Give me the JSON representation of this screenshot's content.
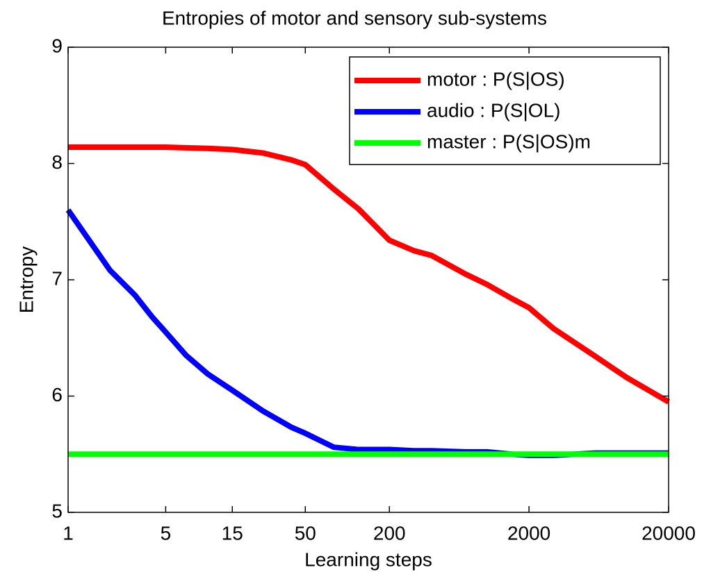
{
  "chart_data": {
    "type": "line",
    "title": "Entropies of motor and sensory sub-systems",
    "xlabel": "Learning steps",
    "ylabel": "Entropy",
    "xscale": "log",
    "x": [
      1,
      2,
      3,
      4,
      5,
      7,
      10,
      15,
      25,
      40,
      50,
      80,
      120,
      200,
      300,
      400,
      700,
      1000,
      1500,
      2000,
      3000,
      6000,
      10000,
      20000
    ],
    "series": [
      {
        "name": "motor : P(S|OS)",
        "color": "#ff0000",
        "values": [
          8.14,
          8.14,
          8.14,
          8.14,
          8.14,
          8.135,
          8.13,
          8.12,
          8.09,
          8.03,
          7.99,
          7.78,
          7.61,
          7.34,
          7.25,
          7.21,
          7.05,
          6.96,
          6.84,
          6.76,
          6.58,
          6.34,
          6.16,
          5.95
        ]
      },
      {
        "name": "audio : P(S|OL)",
        "color": "#0000ff",
        "values": [
          7.6,
          7.08,
          6.87,
          6.68,
          6.55,
          6.35,
          6.19,
          6.05,
          5.87,
          5.73,
          5.68,
          5.56,
          5.54,
          5.54,
          5.53,
          5.53,
          5.52,
          5.52,
          5.5,
          5.49,
          5.49,
          5.51,
          5.51,
          5.51
        ]
      },
      {
        "name": "master : P(S|OS)m",
        "color": "#00ff00",
        "values": [
          5.5,
          5.5,
          5.5,
          5.5,
          5.5,
          5.5,
          5.5,
          5.5,
          5.5,
          5.5,
          5.5,
          5.5,
          5.5,
          5.5,
          5.5,
          5.5,
          5.5,
          5.5,
          5.5,
          5.5,
          5.5,
          5.5,
          5.5,
          5.5
        ]
      }
    ],
    "xlim": [
      1,
      20000
    ],
    "xticks": [
      1,
      5,
      15,
      50,
      200,
      2000,
      20000
    ],
    "ylim": [
      5,
      9
    ],
    "yticks": [
      5,
      6,
      7,
      8,
      9
    ],
    "legend": "upper right"
  }
}
